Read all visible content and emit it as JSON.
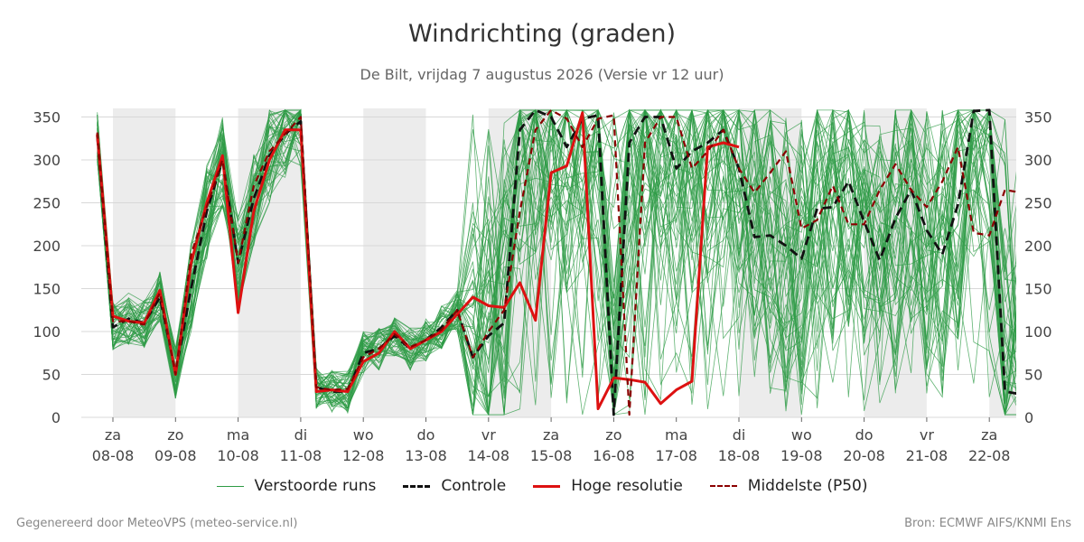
{
  "header": {
    "title": "Windrichting (graden)",
    "subtitle": "De Bilt, vrijdag  7 augustus 2026 (Versie vr 12 uur)"
  },
  "footer": {
    "left": "Gegenereerd door MeteoVPS (meteo-service.nl)",
    "right": "Bron: ECMWF AIFS/KNMI Ens"
  },
  "colors": {
    "ensemble": "#2e9b45",
    "control": "#111111",
    "hires": "#dd1111",
    "median": "#8b0000",
    "weekend_band": "#ececec",
    "grid": "#d8d8d8"
  },
  "chart_data": {
    "type": "line",
    "title": "Windrichting (graden)",
    "ylim": [
      0,
      360
    ],
    "yticks": [
      0,
      50,
      100,
      150,
      200,
      250,
      300,
      350
    ],
    "xlim": [
      -0.25,
      14.5
    ],
    "grid": "horizontal",
    "legend_position": "bottom-center",
    "weekend_bands": [
      [
        0,
        1
      ],
      [
        2,
        3
      ],
      [
        4,
        5
      ],
      [
        6,
        7
      ],
      [
        10,
        11
      ],
      [
        12,
        13
      ],
      [
        14,
        15
      ]
    ],
    "x_ticks": [
      {
        "x": 0,
        "day": "za",
        "date": "08-08"
      },
      {
        "x": 1,
        "day": "zo",
        "date": "09-08"
      },
      {
        "x": 2,
        "day": "ma",
        "date": "10-08"
      },
      {
        "x": 3,
        "day": "di",
        "date": "11-08"
      },
      {
        "x": 4,
        "day": "wo",
        "date": "12-08"
      },
      {
        "x": 5,
        "day": "do",
        "date": "13-08"
      },
      {
        "x": 6,
        "day": "vr",
        "date": "14-08"
      },
      {
        "x": 7,
        "day": "za",
        "date": "15-08"
      },
      {
        "x": 8,
        "day": "zo",
        "date": "16-08"
      },
      {
        "x": 9,
        "day": "ma",
        "date": "17-08"
      },
      {
        "x": 10,
        "day": "di",
        "date": "18-08"
      },
      {
        "x": 11,
        "day": "wo",
        "date": "19-08"
      },
      {
        "x": 12,
        "day": "do",
        "date": "20-08"
      },
      {
        "x": 13,
        "day": "vr",
        "date": "21-08"
      },
      {
        "x": 14,
        "day": "za",
        "date": "22-08"
      }
    ],
    "series": [
      {
        "name": "Verstoorde runs",
        "style": "ensemble",
        "members": 50
      },
      {
        "name": "Controle",
        "style": "control",
        "x": [
          -0.25,
          -0.0,
          0.25,
          0.5,
          0.75,
          1.0,
          1.25,
          1.5,
          1.75,
          2.0,
          2.25,
          2.5,
          2.75,
          3.0,
          3.25,
          3.5,
          3.75,
          4.0,
          4.25,
          4.5,
          4.75,
          5.0,
          5.25,
          5.5,
          5.75,
          6.0,
          6.25,
          6.5,
          6.75,
          7.0,
          7.25,
          7.5,
          7.75,
          8.0,
          8.25,
          8.5,
          8.75,
          9.0,
          9.25,
          9.5,
          9.75,
          10.0,
          10.25,
          10.5,
          10.75,
          11.0,
          11.25,
          11.5,
          11.75,
          12.0,
          12.25,
          12.5,
          12.75,
          13.0,
          13.25,
          13.5,
          13.75,
          14.0,
          14.25,
          14.5
        ],
        "values": [
          328,
          105,
          115,
          110,
          140,
          52,
          150,
          240,
          300,
          180,
          255,
          305,
          330,
          345,
          35,
          30,
          30,
          75,
          80,
          95,
          80,
          90,
          105,
          125,
          70,
          95,
          110,
          335,
          358,
          350,
          315,
          348,
          352,
          3,
          320,
          350,
          350,
          290,
          310,
          320,
          335,
          290,
          210,
          212,
          200,
          185,
          243,
          245,
          275,
          228,
          183,
          232,
          265,
          218,
          190,
          248,
          357,
          358,
          30,
          27
        ]
      },
      {
        "name": "Hoge resolutie",
        "style": "hires",
        "x": [
          -0.25,
          -0.0,
          0.25,
          0.5,
          0.75,
          1.0,
          1.25,
          1.5,
          1.75,
          2.0,
          2.25,
          2.5,
          2.75,
          3.0,
          3.25,
          3.5,
          3.75,
          4.0,
          4.25,
          4.5,
          4.75,
          5.0,
          5.25,
          5.5,
          5.75,
          6.0,
          6.25,
          6.5,
          6.75,
          7.0,
          7.25,
          7.5,
          7.75,
          8.0,
          8.25,
          8.5,
          8.75,
          9.0,
          9.25,
          9.5,
          9.75,
          10.0,
          10.25,
          10.5,
          10.75,
          11.0,
          11.25,
          11.5,
          11.75,
          12.0,
          12.25,
          12.5,
          12.75,
          13.0,
          13.25,
          13.5,
          13.75,
          14.0,
          14.25,
          14.5
        ],
        "values": [
          330,
          118,
          112,
          110,
          148,
          50,
          180,
          250,
          305,
          122,
          240,
          300,
          335,
          335,
          30,
          32,
          30,
          65,
          75,
          100,
          80,
          90,
          100,
          120,
          140,
          130,
          128,
          157,
          113,
          285,
          293,
          355,
          10,
          46,
          44,
          41,
          16,
          32,
          42,
          315,
          320,
          315,
          305,
          295,
          285,
          275,
          265,
          255,
          245,
          235,
          225,
          215,
          205,
          195,
          185,
          175,
          165,
          155,
          145,
          135
        ],
        "end_x": 10.0
      },
      {
        "name": "Middelste (P50)",
        "style": "median",
        "x": [
          -0.25,
          -0.0,
          0.25,
          0.5,
          0.75,
          1.0,
          1.25,
          1.5,
          1.75,
          2.0,
          2.25,
          2.5,
          2.75,
          3.0,
          3.25,
          3.5,
          3.75,
          4.0,
          4.25,
          4.5,
          4.75,
          5.0,
          5.25,
          5.5,
          5.75,
          6.0,
          6.25,
          6.5,
          6.75,
          7.0,
          7.25,
          7.5,
          7.75,
          8.0,
          8.25,
          8.5,
          8.75,
          9.0,
          9.25,
          9.5,
          9.75,
          10.0,
          10.25,
          10.5,
          10.75,
          11.0,
          11.25,
          11.5,
          11.75,
          12.0,
          12.25,
          12.5,
          12.75,
          13.0,
          13.25,
          13.5,
          13.75,
          14.0,
          14.25,
          14.5
        ],
        "values": [
          332,
          112,
          112,
          108,
          145,
          50,
          190,
          245,
          300,
          180,
          270,
          310,
          330,
          350,
          35,
          32,
          33,
          70,
          80,
          97,
          82,
          90,
          102,
          125,
          70,
          100,
          125,
          240,
          335,
          358,
          348,
          315,
          348,
          352,
          3,
          320,
          350,
          350,
          290,
          310,
          335,
          290,
          262,
          285,
          310,
          220,
          230,
          270,
          225,
          225,
          265,
          295,
          265,
          245,
          275,
          315,
          215,
          212,
          265,
          262
        ]
      }
    ]
  },
  "legend": [
    {
      "label": "Verstoorde runs",
      "style": "ensemble"
    },
    {
      "label": "Controle",
      "style": "control"
    },
    {
      "label": "Hoge resolutie",
      "style": "hires"
    },
    {
      "label": "Middelste (P50)",
      "style": "median"
    }
  ]
}
